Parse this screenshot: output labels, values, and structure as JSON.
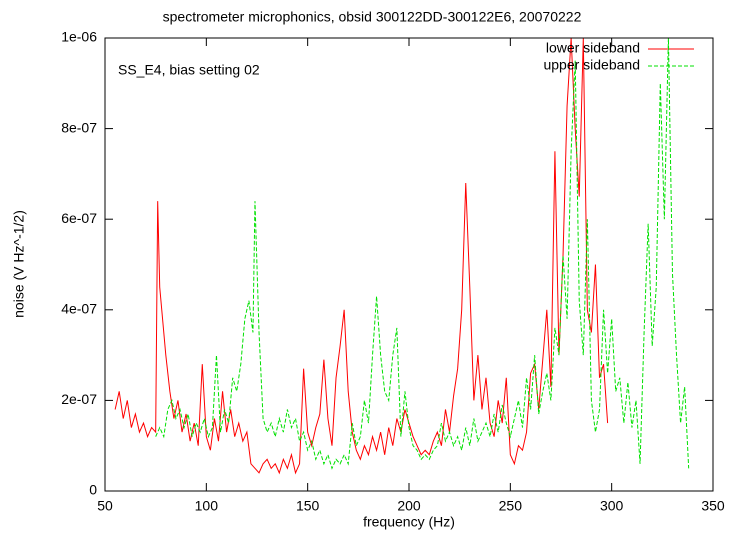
{
  "chart_data": {
    "type": "line",
    "title": "spectrometer microphonics, obsid 300122DD-300122E6, 20070222",
    "annotation": "SS_E4, bias setting 02",
    "x_label": "frequency (Hz)",
    "y_label": "noise (V Hz^-1/2)",
    "xlim": [
      50,
      350
    ],
    "xticks": [
      50,
      100,
      150,
      200,
      250,
      300,
      350
    ],
    "ylim": [
      0,
      1e-06
    ],
    "yticks": [
      0,
      {
        "value": 2e-07,
        "label": "2e-07"
      },
      {
        "value": 4e-07,
        "label": "4e-07"
      },
      {
        "value": 6e-07,
        "label": "6e-07"
      },
      {
        "value": 8e-07,
        "label": "8e-07"
      },
      {
        "value": 1e-06,
        "label": "1e-06"
      }
    ],
    "legend": "upper right",
    "series": [
      {
        "name": "lower sideband",
        "color": "#ff0000",
        "dash": false,
        "x": [
          55,
          57,
          59,
          61,
          63,
          65,
          67,
          69,
          71,
          73,
          75,
          76,
          77,
          78,
          80,
          82,
          84,
          86,
          88,
          90,
          92,
          94,
          96,
          98,
          100,
          102,
          104,
          106,
          108,
          110,
          112,
          114,
          116,
          118,
          120,
          122,
          124,
          126,
          128,
          130,
          132,
          134,
          136,
          138,
          140,
          142,
          144,
          146,
          148,
          150,
          152,
          154,
          156,
          158,
          160,
          162,
          164,
          166,
          168,
          170,
          172,
          174,
          176,
          178,
          180,
          182,
          184,
          186,
          188,
          190,
          192,
          194,
          196,
          198,
          200,
          202,
          204,
          206,
          208,
          210,
          212,
          214,
          216,
          218,
          220,
          222,
          224,
          226,
          228,
          230,
          232,
          234,
          236,
          238,
          240,
          242,
          244,
          246,
          248,
          250,
          252,
          254,
          256,
          258,
          260,
          262,
          264,
          266,
          268,
          270,
          272,
          274,
          276,
          278,
          280,
          282,
          284,
          286,
          288,
          290,
          292,
          294,
          296,
          298
        ],
        "values": [
          1.8e-07,
          2.2e-07,
          1.6e-07,
          2e-07,
          1.4e-07,
          1.7e-07,
          1.3e-07,
          1.5e-07,
          1.2e-07,
          1.4e-07,
          1.3e-07,
          6.4e-07,
          4.5e-07,
          4e-07,
          3e-07,
          2.2e-07,
          1.6e-07,
          2e-07,
          1.3e-07,
          1.7e-07,
          1.1e-07,
          1.5e-07,
          1e-07,
          2.8e-07,
          1.2e-07,
          9e-08,
          1.6e-07,
          1.1e-07,
          2.2e-07,
          1.3e-07,
          1.8e-07,
          1.2e-07,
          1.5e-07,
          1.1e-07,
          1.3e-07,
          6e-08,
          5e-08,
          4e-08,
          6e-08,
          7e-08,
          5e-08,
          6e-08,
          4e-08,
          7e-08,
          5e-08,
          8e-08,
          4e-08,
          6e-08,
          2.7e-07,
          1.3e-07,
          1e-07,
          1.4e-07,
          1.7e-07,
          2.9e-07,
          1.6e-07,
          1e-07,
          2.5e-07,
          3.2e-07,
          4e-07,
          2.2e-07,
          1.3e-07,
          9e-08,
          7e-08,
          1e-07,
          8e-08,
          1.2e-07,
          9e-08,
          1.3e-07,
          8e-08,
          1.4e-07,
          1e-07,
          1.6e-07,
          1.3e-07,
          1.8e-07,
          1.5e-07,
          1.2e-07,
          1e-07,
          8e-08,
          9e-08,
          8e-08,
          1.1e-07,
          1.3e-07,
          1e-07,
          1.8e-07,
          1.3e-07,
          2.1e-07,
          2.7e-07,
          4e-07,
          6.8e-07,
          4.5e-07,
          2e-07,
          3e-07,
          1.8e-07,
          2.5e-07,
          1.5e-07,
          1.2e-07,
          2e-07,
          1.5e-07,
          2.5e-07,
          8e-08,
          6e-08,
          1e-07,
          9e-08,
          1.3e-07,
          2.6e-07,
          2.8e-07,
          1.8e-07,
          2.9e-07,
          4e-07,
          2.3e-07,
          7.5e-07,
          3e-07,
          5.2e-07,
          8.5e-07,
          1e-06,
          8e-07,
          6.5e-07,
          1e-06,
          4e-07,
          3.5e-07,
          5e-07,
          2.5e-07,
          2.8e-07,
          1.5e-07
        ]
      },
      {
        "name": "upper sideband",
        "color": "#00e000",
        "dash": true,
        "x": [
          75,
          77,
          79,
          81,
          83,
          85,
          87,
          89,
          91,
          93,
          95,
          97,
          99,
          101,
          103,
          105,
          107,
          109,
          111,
          113,
          115,
          117,
          119,
          121,
          123,
          124,
          126,
          128,
          130,
          132,
          134,
          136,
          138,
          140,
          142,
          144,
          146,
          148,
          150,
          152,
          154,
          156,
          158,
          160,
          162,
          164,
          166,
          168,
          170,
          172,
          174,
          176,
          178,
          180,
          182,
          184,
          186,
          188,
          190,
          192,
          194,
          196,
          198,
          200,
          202,
          204,
          206,
          208,
          210,
          212,
          214,
          216,
          218,
          220,
          222,
          224,
          226,
          228,
          230,
          232,
          234,
          236,
          238,
          240,
          242,
          244,
          246,
          248,
          250,
          252,
          254,
          256,
          258,
          260,
          262,
          264,
          266,
          268,
          270,
          272,
          274,
          276,
          278,
          280,
          282,
          284,
          286,
          288,
          290,
          292,
          294,
          296,
          298,
          300,
          302,
          304,
          306,
          308,
          310,
          312,
          314,
          316,
          318,
          320,
          322,
          324,
          326,
          328,
          330,
          332,
          334,
          336,
          338
        ],
        "values": [
          1.2e-07,
          1.4e-07,
          1.2e-07,
          1.8e-07,
          2e-07,
          1.6e-07,
          1.8e-07,
          1.4e-07,
          1.7e-07,
          1.2e-07,
          1.5e-07,
          1.3e-07,
          1.6e-07,
          1.2e-07,
          1.4e-07,
          3e-07,
          1.3e-07,
          1.8e-07,
          1.5e-07,
          2.5e-07,
          2.2e-07,
          2.8e-07,
          3.8e-07,
          4.2e-07,
          3.5e-07,
          6.4e-07,
          3.5e-07,
          1.6e-07,
          1.3e-07,
          1.5e-07,
          1.2e-07,
          1.6e-07,
          1.3e-07,
          1.8e-07,
          1.4e-07,
          1.6e-07,
          1.1e-07,
          1.3e-07,
          9e-08,
          1.1e-07,
          7e-08,
          9e-08,
          6e-08,
          8e-08,
          5e-08,
          7e-08,
          6e-08,
          8e-08,
          6e-08,
          1.5e-07,
          1e-07,
          1.2e-07,
          2e-07,
          1.5e-07,
          3e-07,
          4.3e-07,
          3e-07,
          2.2e-07,
          2e-07,
          3e-07,
          3.6e-07,
          1.2e-07,
          2.2e-07,
          1.4e-07,
          1e-07,
          9e-08,
          7e-08,
          8e-08,
          7e-08,
          9e-08,
          1e-07,
          1.5e-07,
          1.1e-07,
          1.3e-07,
          1e-07,
          1.2e-07,
          9e-08,
          1.4e-07,
          1e-07,
          1.6e-07,
          1.1e-07,
          1.3e-07,
          1.5e-07,
          1.2e-07,
          1.7e-07,
          1.3e-07,
          1.9e-07,
          1.5e-07,
          1.2e-07,
          1.6e-07,
          2e-07,
          1.4e-07,
          2.5e-07,
          1.8e-07,
          3e-07,
          1.7e-07,
          2.2e-07,
          2.6e-07,
          2e-07,
          3.6e-07,
          3e-07,
          5.2e-07,
          3.8e-07,
          7.5e-07,
          9.5e-07,
          4.2e-07,
          3e-07,
          6e-07,
          2e-07,
          1.3e-07,
          1.8e-07,
          4e-07,
          2.6e-07,
          3.8e-07,
          2.2e-07,
          2.5e-07,
          1.5e-07,
          2.4e-07,
          1.4e-07,
          2e-07,
          6e-08,
          3.5e-07,
          5.9e-07,
          3.2e-07,
          4.5e-07,
          9e-07,
          6e-07,
          1e-06,
          4.8e-07,
          3e-07,
          1.5e-07,
          2.3e-07,
          5e-08
        ]
      }
    ]
  }
}
